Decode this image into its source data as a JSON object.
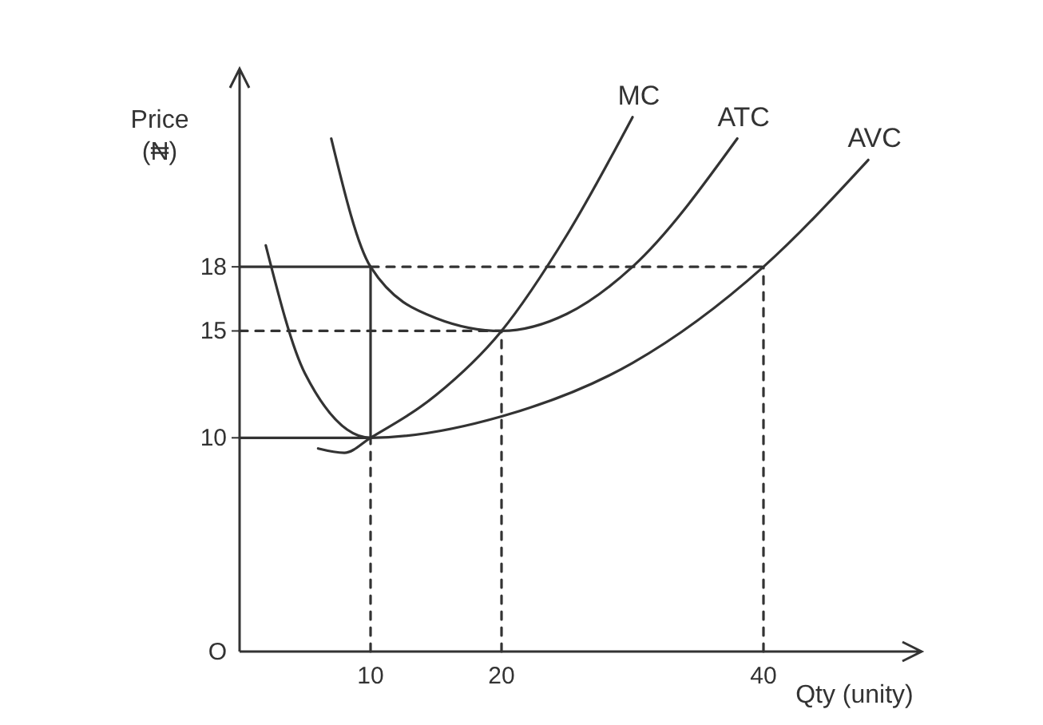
{
  "chart_data": {
    "type": "line",
    "ylabel": "Price (₦)",
    "xlabel": "Qty (unity)",
    "xlim": [
      0,
      50
    ],
    "ylim": [
      0,
      26
    ],
    "xticks": [
      10,
      20,
      40
    ],
    "yticks": [
      {
        "value": 0,
        "label": "O"
      },
      10,
      15,
      18
    ],
    "series": [
      {
        "name": "MC",
        "color": "#333333",
        "x": [
          6,
          8,
          10,
          15,
          20,
          25,
          30
        ],
        "values": [
          9.5,
          9.3,
          10,
          12,
          15,
          19.5,
          25
        ]
      },
      {
        "name": "ATC",
        "color": "#333333",
        "x": [
          7,
          10,
          15,
          20,
          25,
          30,
          38
        ],
        "values": [
          24,
          18,
          15.6,
          15,
          15.8,
          18,
          24
        ]
      },
      {
        "name": "AVC",
        "color": "#333333",
        "x": [
          2,
          5,
          10,
          20,
          30,
          40,
          48
        ],
        "values": [
          19,
          13,
          10,
          11,
          13.5,
          18,
          23
        ]
      },
      {
        "color": "#333333",
        "x": [
          0,
          10
        ],
        "values": [
          18,
          18
        ]
      },
      {
        "color": "#333333",
        "x": [
          10,
          40
        ],
        "values": [
          18,
          18
        ],
        "line_style": "dashed"
      },
      {
        "color": "#333333",
        "x": [
          0,
          20
        ],
        "values": [
          15,
          15
        ],
        "line_style": "dashed"
      },
      {
        "color": "#333333",
        "x": [
          0,
          10
        ],
        "values": [
          10,
          10
        ]
      },
      {
        "color": "#333333",
        "x": [
          10,
          10
        ],
        "values": [
          10,
          18
        ]
      },
      {
        "color": "#333333",
        "x": [
          10,
          10
        ],
        "values": [
          0,
          10
        ],
        "line_style": "dashed"
      },
      {
        "color": "#333333",
        "x": [
          20,
          20
        ],
        "values": [
          0,
          15
        ],
        "line_style": "dashed"
      },
      {
        "color": "#333333",
        "x": [
          40,
          40
        ],
        "values": [
          0,
          18
        ],
        "line_style": "dashed"
      }
    ]
  }
}
